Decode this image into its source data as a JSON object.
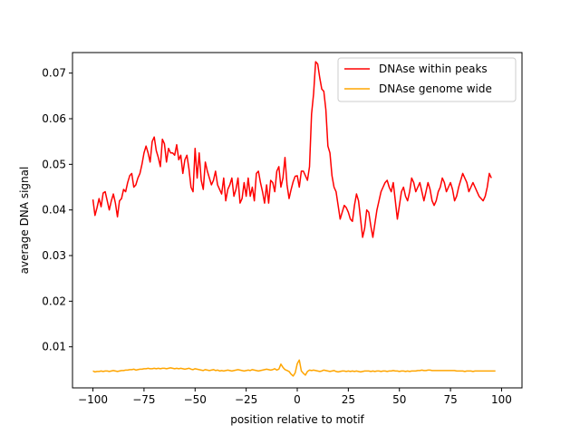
{
  "chart_data": {
    "type": "line",
    "title": "",
    "xlabel": "position relative to motif",
    "ylabel": "average DNA signal",
    "xlim": [
      -110,
      110
    ],
    "ylim": [
      0.001,
      0.0745
    ],
    "xticks": [
      -100,
      -75,
      -50,
      -25,
      0,
      25,
      50,
      75,
      100
    ],
    "xtick_labels": [
      "−100",
      "−75",
      "−50",
      "−25",
      "0",
      "25",
      "50",
      "75",
      "100"
    ],
    "yticks": [
      0.01,
      0.02,
      0.03,
      0.04,
      0.05,
      0.06,
      0.07
    ],
    "ytick_labels": [
      "0.01",
      "0.02",
      "0.03",
      "0.04",
      "0.05",
      "0.06",
      "0.07"
    ],
    "grid": false,
    "legend_position": "top-right",
    "x_start": -100,
    "x_step": 1,
    "series": [
      {
        "name": "DNAse within peaks",
        "color": "#ff0000",
        "values": [
          0.0423,
          0.0388,
          0.0405,
          0.0425,
          0.0407,
          0.0437,
          0.044,
          0.042,
          0.04,
          0.042,
          0.0435,
          0.0415,
          0.0385,
          0.042,
          0.0425,
          0.0445,
          0.044,
          0.046,
          0.0475,
          0.048,
          0.045,
          0.0455,
          0.047,
          0.048,
          0.05,
          0.0525,
          0.054,
          0.0525,
          0.0505,
          0.055,
          0.056,
          0.053,
          0.0515,
          0.0495,
          0.0555,
          0.0545,
          0.0505,
          0.0535,
          0.0525,
          0.0525,
          0.052,
          0.0543,
          0.051,
          0.052,
          0.048,
          0.051,
          0.052,
          0.049,
          0.045,
          0.044,
          0.0535,
          0.047,
          0.0525,
          0.0465,
          0.0445,
          0.0505,
          0.0485,
          0.047,
          0.0455,
          0.0465,
          0.0485,
          0.0455,
          0.0445,
          0.0435,
          0.047,
          0.042,
          0.0445,
          0.0455,
          0.047,
          0.043,
          0.0445,
          0.047,
          0.0415,
          0.0425,
          0.046,
          0.043,
          0.047,
          0.043,
          0.045,
          0.042,
          0.048,
          0.0485,
          0.046,
          0.044,
          0.0415,
          0.0455,
          0.0415,
          0.0465,
          0.046,
          0.044,
          0.0485,
          0.0495,
          0.045,
          0.047,
          0.0515,
          0.0455,
          0.0425,
          0.0445,
          0.0462,
          0.0474,
          0.0475,
          0.045,
          0.0485,
          0.0485,
          0.0475,
          0.0465,
          0.0495,
          0.061,
          0.0655,
          0.0725,
          0.072,
          0.069,
          0.0665,
          0.066,
          0.062,
          0.054,
          0.0525,
          0.0475,
          0.045,
          0.044,
          0.041,
          0.038,
          0.0395,
          0.041,
          0.0405,
          0.0395,
          0.038,
          0.0375,
          0.041,
          0.0435,
          0.042,
          0.038,
          0.034,
          0.036,
          0.04,
          0.0395,
          0.0365,
          0.034,
          0.037,
          0.04,
          0.042,
          0.044,
          0.045,
          0.046,
          0.0465,
          0.045,
          0.044,
          0.046,
          0.042,
          0.038,
          0.041,
          0.044,
          0.045,
          0.043,
          0.042,
          0.044,
          0.047,
          0.046,
          0.044,
          0.045,
          0.046,
          0.044,
          0.042,
          0.044,
          0.046,
          0.0445,
          0.042,
          0.041,
          0.042,
          0.044,
          0.045,
          0.047,
          0.046,
          0.044,
          0.045,
          0.046,
          0.0445,
          0.042,
          0.043,
          0.045,
          0.0465,
          0.048,
          0.047,
          0.046,
          0.044,
          0.045,
          0.046,
          0.045,
          0.044,
          0.043,
          0.0425,
          0.042,
          0.043,
          0.045,
          0.048,
          0.047
        ]
      },
      {
        "name": "DNAse genome wide",
        "color": "#ffa500",
        "values": [
          0.0047,
          0.0045,
          0.0046,
          0.0046,
          0.0047,
          0.0046,
          0.0047,
          0.0047,
          0.0046,
          0.0047,
          0.0048,
          0.0047,
          0.0046,
          0.0047,
          0.0048,
          0.0048,
          0.0049,
          0.0049,
          0.005,
          0.005,
          0.0051,
          0.0049,
          0.005,
          0.0051,
          0.0051,
          0.0052,
          0.0052,
          0.0053,
          0.0052,
          0.0052,
          0.0053,
          0.0052,
          0.0053,
          0.0052,
          0.0053,
          0.0053,
          0.0052,
          0.0053,
          0.0054,
          0.0053,
          0.0052,
          0.0053,
          0.0052,
          0.0053,
          0.0052,
          0.0051,
          0.0052,
          0.0053,
          0.0051,
          0.005,
          0.0052,
          0.0051,
          0.005,
          0.0049,
          0.0048,
          0.005,
          0.0049,
          0.0048,
          0.0049,
          0.005,
          0.0048,
          0.0049,
          0.0047,
          0.0048,
          0.0047,
          0.0048,
          0.0049,
          0.0048,
          0.0047,
          0.0048,
          0.0049,
          0.005,
          0.0049,
          0.0048,
          0.0047,
          0.0048,
          0.0049,
          0.0048,
          0.005,
          0.0049,
          0.0048,
          0.0047,
          0.0048,
          0.0049,
          0.005,
          0.0051,
          0.005,
          0.0049,
          0.005,
          0.0052,
          0.0049,
          0.0051,
          0.0062,
          0.0055,
          0.005,
          0.0048,
          0.0046,
          0.004,
          0.0036,
          0.0043,
          0.0063,
          0.0071,
          0.0047,
          0.0042,
          0.0038,
          0.0046,
          0.0049,
          0.0048,
          0.0049,
          0.0048,
          0.0047,
          0.0046,
          0.0047,
          0.0049,
          0.0048,
          0.0047,
          0.0046,
          0.0047,
          0.0048,
          0.0046,
          0.0045,
          0.0046,
          0.0047,
          0.0047,
          0.0046,
          0.0047,
          0.0046,
          0.0047,
          0.0046,
          0.0047,
          0.0046,
          0.0045,
          0.0046,
          0.0047,
          0.0047,
          0.0047,
          0.0046,
          0.0047,
          0.0046,
          0.0047,
          0.0047,
          0.0046,
          0.0047,
          0.0047,
          0.0046,
          0.0047,
          0.0047,
          0.0048,
          0.0047,
          0.0047,
          0.0046,
          0.0047,
          0.0047,
          0.0046,
          0.0047,
          0.0046,
          0.0047,
          0.0047,
          0.0047,
          0.0048,
          0.0048,
          0.0049,
          0.0048,
          0.0048,
          0.0049,
          0.0049,
          0.0048,
          0.0048,
          0.0048,
          0.0048,
          0.0048,
          0.0048,
          0.0048,
          0.0048,
          0.0048,
          0.0048,
          0.0048,
          0.0048,
          0.0047,
          0.0047,
          0.0047,
          0.0047,
          0.0046,
          0.0047,
          0.0047,
          0.0047,
          0.0046,
          0.0047,
          0.0047,
          0.0047,
          0.0047,
          0.0047,
          0.0047,
          0.0047,
          0.0047,
          0.0047,
          0.0047,
          0.0047
        ]
      }
    ]
  }
}
